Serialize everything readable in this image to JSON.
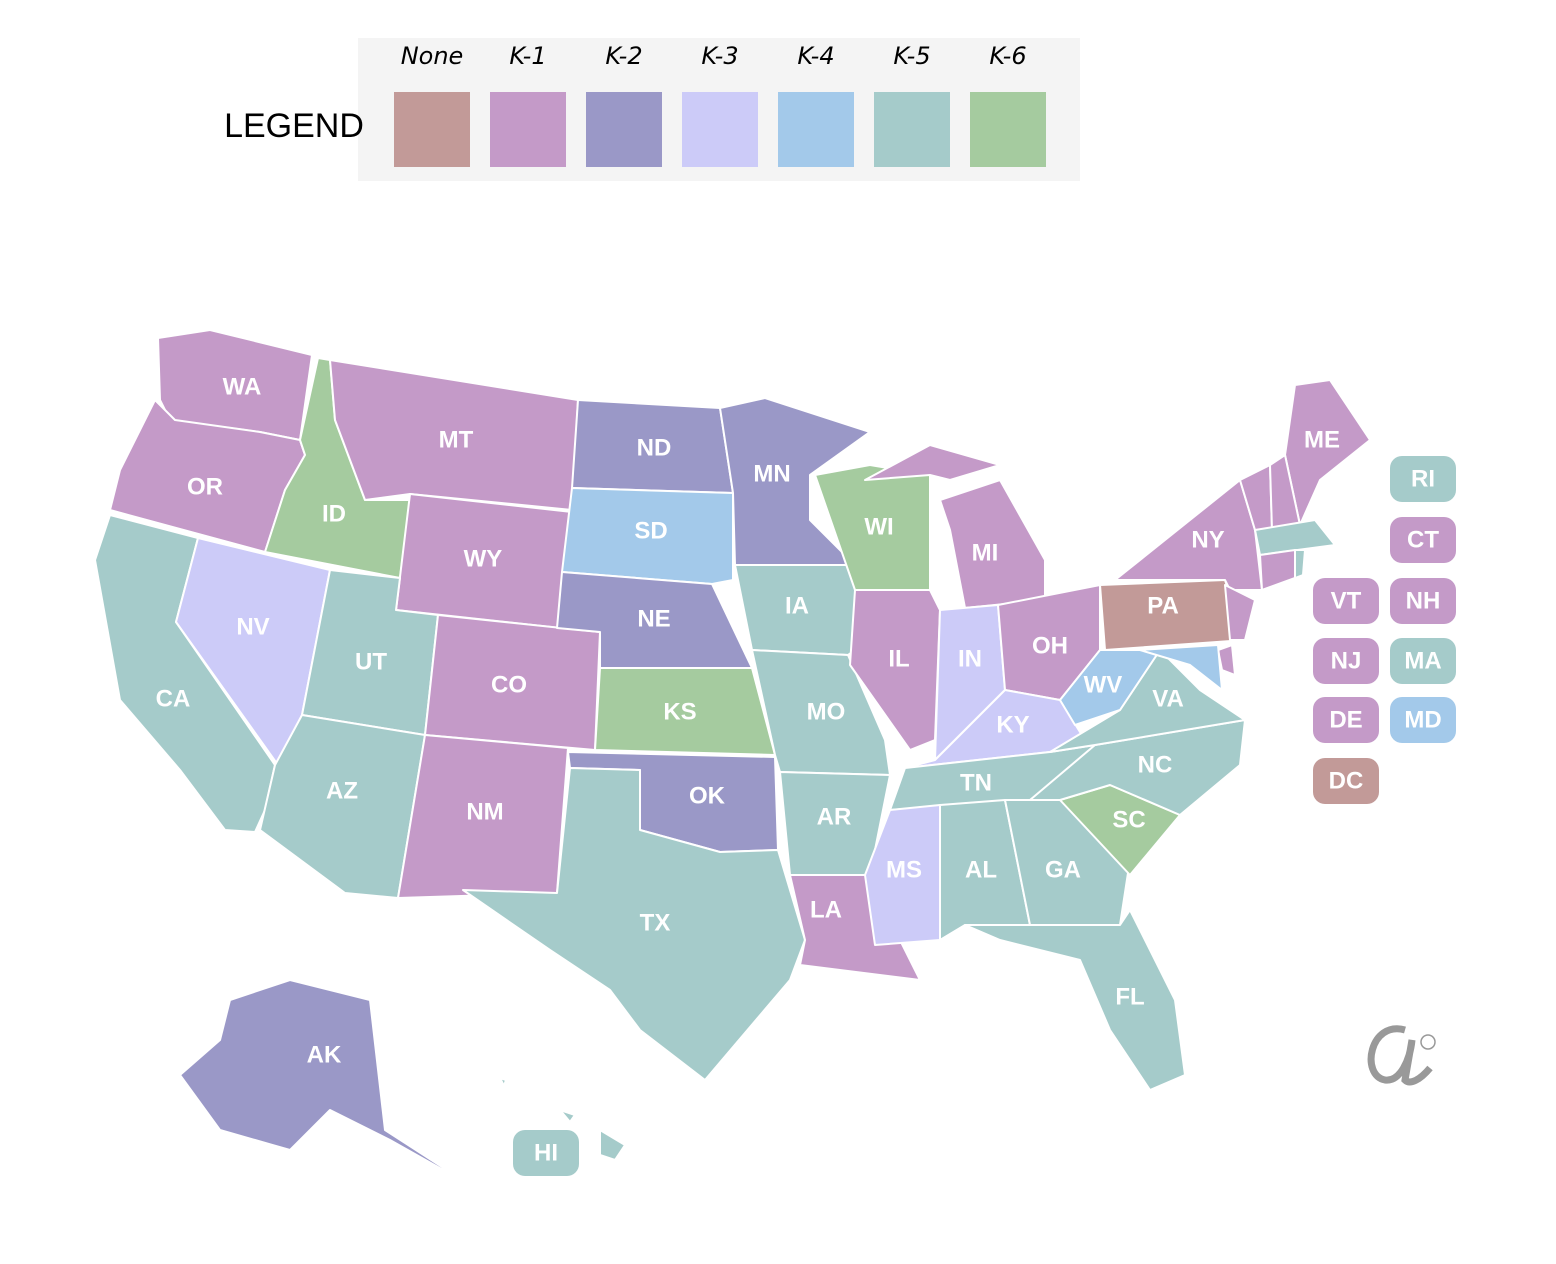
{
  "legend": {
    "title": "LEGEND",
    "items": [
      {
        "label": "None",
        "color": "#c29a98"
      },
      {
        "label": "K-1",
        "color": "#c49ac8"
      },
      {
        "label": "K-2",
        "color": "#9a98c7"
      },
      {
        "label": "K-3",
        "color": "#cccbf8"
      },
      {
        "label": "K-4",
        "color": "#a3c9ea"
      },
      {
        "label": "K-5",
        "color": "#a5cbca"
      },
      {
        "label": "K-6",
        "color": "#a5cb9f"
      }
    ]
  },
  "states": [
    {
      "label": "WA",
      "level": "K-1"
    },
    {
      "label": "OR",
      "level": "K-1"
    },
    {
      "label": "CA",
      "level": "K-5"
    },
    {
      "label": "NV",
      "level": "K-3"
    },
    {
      "label": "ID",
      "level": "K-6"
    },
    {
      "label": "MT",
      "level": "K-1"
    },
    {
      "label": "WY",
      "level": "K-1"
    },
    {
      "label": "UT",
      "level": "K-5"
    },
    {
      "label": "CO",
      "level": "K-1"
    },
    {
      "label": "AZ",
      "level": "K-5"
    },
    {
      "label": "NM",
      "level": "K-1"
    },
    {
      "label": "ND",
      "level": "K-2"
    },
    {
      "label": "SD",
      "level": "K-4"
    },
    {
      "label": "NE",
      "level": "K-2"
    },
    {
      "label": "KS",
      "level": "K-6"
    },
    {
      "label": "OK",
      "level": "K-2"
    },
    {
      "label": "TX",
      "level": "K-5"
    },
    {
      "label": "MN",
      "level": "K-2"
    },
    {
      "label": "IA",
      "level": "K-5"
    },
    {
      "label": "MO",
      "level": "K-5"
    },
    {
      "label": "AR",
      "level": "K-5"
    },
    {
      "label": "LA",
      "level": "K-1"
    },
    {
      "label": "WI",
      "level": "K-6"
    },
    {
      "label": "IL",
      "level": "K-1"
    },
    {
      "label": "MI",
      "level": "K-1"
    },
    {
      "label": "IN",
      "level": "K-3"
    },
    {
      "label": "OH",
      "level": "K-1"
    },
    {
      "label": "KY",
      "level": "K-3"
    },
    {
      "label": "TN",
      "level": "K-5"
    },
    {
      "label": "MS",
      "level": "K-3"
    },
    {
      "label": "AL",
      "level": "K-5"
    },
    {
      "label": "GA",
      "level": "K-5"
    },
    {
      "label": "FL",
      "level": "K-5"
    },
    {
      "label": "SC",
      "level": "K-6"
    },
    {
      "label": "NC",
      "level": "K-5"
    },
    {
      "label": "VA",
      "level": "K-5"
    },
    {
      "label": "WV",
      "level": "K-4"
    },
    {
      "label": "PA",
      "level": "None"
    },
    {
      "label": "NY",
      "level": "K-1"
    },
    {
      "label": "ME",
      "level": "K-1"
    },
    {
      "label": "AK",
      "level": "K-2"
    },
    {
      "label": "HI",
      "level": "K-5"
    },
    {
      "label": "VT",
      "level": "K-1"
    },
    {
      "label": "NH",
      "level": "K-1"
    },
    {
      "label": "MA",
      "level": "K-5"
    },
    {
      "label": "RI",
      "level": "K-5"
    },
    {
      "label": "CT",
      "level": "K-1"
    },
    {
      "label": "NJ",
      "level": "K-1"
    },
    {
      "label": "DE",
      "level": "K-1"
    },
    {
      "label": "MD",
      "level": "K-4"
    },
    {
      "label": "DC",
      "level": "None"
    }
  ]
}
